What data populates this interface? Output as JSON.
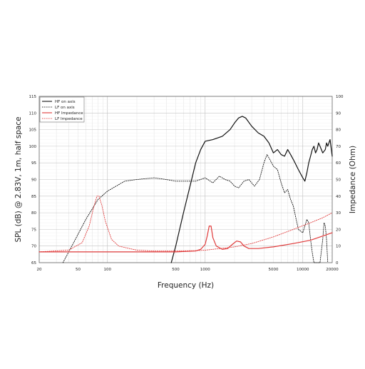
{
  "chart_data": {
    "type": "line",
    "title": "",
    "xlabel": "Frequency (Hz)",
    "ylabel_left": "SPL (dB) @ 2.83V, 1m, half space",
    "ylabel_right": "Impedance (Ohm)",
    "x_scale": "log",
    "xlim": [
      20,
      20000
    ],
    "ylim_left": [
      65,
      115
    ],
    "ylim_right": [
      0,
      100
    ],
    "grid": true,
    "legend_position": "top-left",
    "x_tick_labels": [
      "20",
      "50",
      "100",
      "500",
      "1000",
      "5000",
      "10000",
      "20000"
    ],
    "x_tick_values": [
      20,
      50,
      100,
      500,
      1000,
      5000,
      10000,
      20000
    ],
    "y_left_ticks": [
      65,
      70,
      75,
      80,
      85,
      90,
      95,
      100,
      105,
      110,
      115
    ],
    "y_right_ticks": [
      0,
      10,
      20,
      30,
      40,
      50,
      60,
      70,
      80,
      90,
      100
    ],
    "series": [
      {
        "name": "HF on axis",
        "axis": "left",
        "color": "#111111",
        "style": "solid",
        "points": [
          [
            450,
            65
          ],
          [
            500,
            70
          ],
          [
            600,
            80
          ],
          [
            700,
            88
          ],
          [
            800,
            95
          ],
          [
            900,
            99
          ],
          [
            1000,
            101.5
          ],
          [
            1200,
            102
          ],
          [
            1500,
            103
          ],
          [
            1800,
            105
          ],
          [
            2000,
            107
          ],
          [
            2200,
            108.5
          ],
          [
            2400,
            109
          ],
          [
            2600,
            108.5
          ],
          [
            3000,
            106
          ],
          [
            3500,
            104
          ],
          [
            4000,
            103
          ],
          [
            4500,
            101
          ],
          [
            5000,
            98
          ],
          [
            5500,
            99
          ],
          [
            6000,
            97.5
          ],
          [
            6500,
            97
          ],
          [
            7000,
            99
          ],
          [
            7500,
            97.5
          ],
          [
            8000,
            96
          ],
          [
            9000,
            93
          ],
          [
            10000,
            90.5
          ],
          [
            10500,
            89.5
          ],
          [
            11000,
            92
          ],
          [
            11500,
            95
          ],
          [
            12000,
            97
          ],
          [
            12500,
            99
          ],
          [
            13000,
            100
          ],
          [
            13500,
            98
          ],
          [
            14000,
            99
          ],
          [
            14500,
            101
          ],
          [
            15000,
            100
          ],
          [
            16000,
            98
          ],
          [
            17000,
            99
          ],
          [
            17500,
            101
          ],
          [
            18000,
            100
          ],
          [
            19000,
            102
          ],
          [
            20000,
            97
          ]
        ]
      },
      {
        "name": "LF on axis",
        "axis": "left",
        "color": "#111111",
        "style": "dotted",
        "points": [
          [
            35,
            65
          ],
          [
            45,
            71
          ],
          [
            60,
            78
          ],
          [
            80,
            84
          ],
          [
            100,
            86.5
          ],
          [
            150,
            89.5
          ],
          [
            200,
            90
          ],
          [
            300,
            90.5
          ],
          [
            400,
            90
          ],
          [
            500,
            89.5
          ],
          [
            600,
            89.5
          ],
          [
            800,
            89.5
          ],
          [
            1000,
            90.5
          ],
          [
            1200,
            89
          ],
          [
            1400,
            91
          ],
          [
            1600,
            90
          ],
          [
            1800,
            89.5
          ],
          [
            2000,
            88
          ],
          [
            2200,
            87.5
          ],
          [
            2500,
            89.5
          ],
          [
            2800,
            90
          ],
          [
            3200,
            88
          ],
          [
            3600,
            90
          ],
          [
            4000,
            95
          ],
          [
            4300,
            97.5
          ],
          [
            4600,
            96
          ],
          [
            5000,
            94
          ],
          [
            5500,
            93
          ],
          [
            6000,
            89
          ],
          [
            6500,
            86
          ],
          [
            7000,
            87
          ],
          [
            7500,
            84
          ],
          [
            8000,
            82
          ],
          [
            9000,
            75
          ],
          [
            10000,
            74
          ],
          [
            11000,
            78
          ],
          [
            11500,
            77
          ],
          [
            12000,
            72
          ],
          [
            12500,
            68
          ],
          [
            13000,
            65
          ],
          [
            15000,
            65
          ],
          [
            16000,
            72
          ],
          [
            16500,
            77
          ],
          [
            17000,
            76
          ],
          [
            17500,
            72
          ],
          [
            18000,
            65
          ]
        ]
      },
      {
        "name": "HF Impedance",
        "axis": "right",
        "color": "#e03a3a",
        "style": "solid",
        "points": [
          [
            20,
            6.5
          ],
          [
            100,
            6.5
          ],
          [
            500,
            6.5
          ],
          [
            800,
            7
          ],
          [
            900,
            8
          ],
          [
            1000,
            11
          ],
          [
            1050,
            16
          ],
          [
            1100,
            22
          ],
          [
            1150,
            22
          ],
          [
            1200,
            15
          ],
          [
            1300,
            10
          ],
          [
            1500,
            8
          ],
          [
            1700,
            8.5
          ],
          [
            1900,
            11
          ],
          [
            2100,
            13
          ],
          [
            2300,
            12.5
          ],
          [
            2500,
            10
          ],
          [
            2800,
            8.5
          ],
          [
            3500,
            8.5
          ],
          [
            5000,
            9.5
          ],
          [
            8000,
            11.5
          ],
          [
            12000,
            13.5
          ],
          [
            16000,
            16
          ],
          [
            20000,
            18
          ]
        ]
      },
      {
        "name": "LF Impedance",
        "axis": "right",
        "color": "#e03a3a",
        "style": "dotted",
        "points": [
          [
            20,
            6.5
          ],
          [
            40,
            7.5
          ],
          [
            55,
            12
          ],
          [
            65,
            22
          ],
          [
            72,
            33
          ],
          [
            78,
            40
          ],
          [
            82,
            40
          ],
          [
            88,
            34
          ],
          [
            95,
            25
          ],
          [
            110,
            14
          ],
          [
            130,
            10
          ],
          [
            200,
            7.5
          ],
          [
            300,
            7
          ],
          [
            500,
            7
          ],
          [
            800,
            7.2
          ],
          [
            1000,
            7.5
          ],
          [
            2000,
            9.5
          ],
          [
            3000,
            11.5
          ],
          [
            5000,
            15.5
          ],
          [
            8000,
            20
          ],
          [
            12000,
            24
          ],
          [
            16000,
            27
          ],
          [
            20000,
            30
          ]
        ]
      }
    ]
  }
}
